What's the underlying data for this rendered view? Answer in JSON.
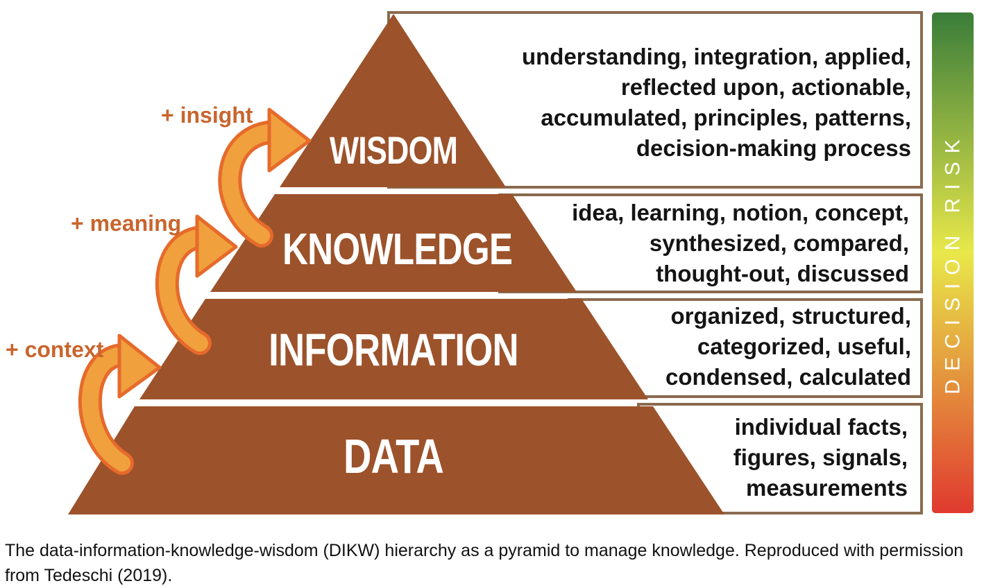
{
  "diagram": {
    "levels": [
      {
        "id": "wisdom",
        "label": "WISDOM",
        "description": [
          "understanding, integration, applied,",
          "reflected upon, actionable,",
          "accumulated, principles, patterns,",
          "decision-making process"
        ]
      },
      {
        "id": "knowledge",
        "label": "KNOWLEDGE",
        "description": [
          "idea, learning, notion, concept,",
          "synthesized, compared,",
          "thought-out, discussed"
        ]
      },
      {
        "id": "information",
        "label": "INFORMATION",
        "description": [
          "organized, structured,",
          "categorized, useful,",
          "condensed, calculated"
        ]
      },
      {
        "id": "data",
        "label": "DATA",
        "description": [
          "individual facts,",
          "figures, signals,",
          "measurements"
        ]
      }
    ],
    "transitions": [
      {
        "id": "insight",
        "label": "+ insight"
      },
      {
        "id": "meaning",
        "label": "+ meaning"
      },
      {
        "id": "context",
        "label": "+ context"
      }
    ],
    "risk_bar": {
      "label": "DECISION RISK",
      "color_top": "#3a7d3a",
      "color_middle": "#e8e84a",
      "color_bottom": "#e03a2f"
    },
    "colors": {
      "pyramid": "#9c522a",
      "arrow_fill": "#f0a03c",
      "arrow_outline": "#e66a2c",
      "label_text": "#c8652d",
      "box_border": "#8a6a4e"
    }
  },
  "caption": "The data-information-knowledge-wisdom (DIKW) hierarchy as a pyramid to manage knowledge. Reproduced with permission from Tedeschi (2019)."
}
